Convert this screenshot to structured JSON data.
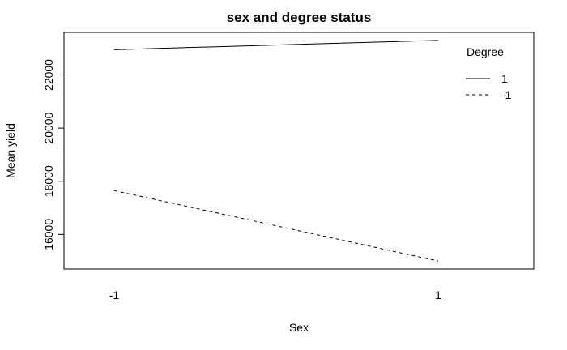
{
  "chart_data": {
    "type": "line",
    "title": "sex and degree status",
    "xlabel": "Sex",
    "ylabel": "Mean yield",
    "categories": [
      "-1",
      "1"
    ],
    "x_tick_labels": [
      "-1",
      "1"
    ],
    "y_ticks": [
      16000,
      18000,
      20000,
      22000
    ],
    "y_tick_labels": [
      "16000",
      "18000",
      "20000",
      "22000"
    ],
    "ylim": [
      14700,
      23600
    ],
    "series": [
      {
        "name": "1",
        "values": [
          22950,
          23300
        ],
        "line_style": "solid"
      },
      {
        "name": "-1",
        "values": [
          17650,
          15000
        ],
        "line_style": "dashed"
      }
    ],
    "legend": {
      "title": "Degree",
      "position": "top-right"
    },
    "grid": false,
    "line_color": "#000000"
  }
}
